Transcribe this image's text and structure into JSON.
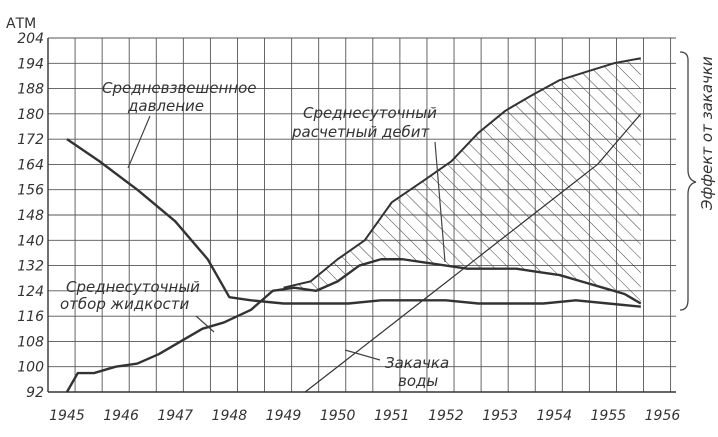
{
  "chart_data": {
    "type": "line",
    "ylabel": "АТМ",
    "x_ticks": [
      "1945",
      "1946",
      "1947",
      "1948",
      "1949",
      "1950",
      "1951",
      "1952",
      "1953",
      "1954",
      "1955",
      "1956"
    ],
    "y_ticks": [
      92,
      100,
      108,
      116,
      124,
      132,
      140,
      148,
      156,
      164,
      172,
      180,
      188,
      194,
      204
    ],
    "ylim": [
      92,
      204
    ],
    "grid": true,
    "series": [
      {
        "name": "Средневзвешенное давление",
        "x": [
          1945.0,
          1945.6,
          1946.3,
          1947.0,
          1947.6,
          1948.0,
          1948.4,
          1949.0,
          1949.6,
          1950.2,
          1950.8,
          1951.4,
          1952.0,
          1952.6,
          1953.2,
          1953.8,
          1954.4,
          1955.0,
          1955.6
        ],
        "y": [
          172,
          165,
          156,
          146,
          134,
          122,
          121,
          120,
          120,
          120,
          121,
          121,
          121,
          120,
          120,
          120,
          121,
          120,
          119
        ]
      },
      {
        "name": "Среднесуточный отбор жидкости",
        "x": [
          1945.0,
          1945.2,
          1945.5,
          1945.9,
          1946.3,
          1946.7,
          1947.1,
          1947.5,
          1947.9,
          1948.4,
          1948.8,
          1949.2,
          1949.6,
          1950.0,
          1950.4,
          1950.8,
          1951.2,
          1951.6,
          1952.0,
          1952.4,
          1952.9,
          1953.3,
          1953.7,
          1954.1,
          1954.5,
          1954.9,
          1955.3,
          1955.6
        ],
        "y": [
          92,
          98,
          98,
          100,
          101,
          104,
          108,
          112,
          114,
          118,
          124,
          125,
          124,
          127,
          132,
          134,
          134,
          133,
          132,
          131,
          131,
          131,
          130,
          129,
          127,
          125,
          123,
          120
        ]
      },
      {
        "name": "Среднесуточный расчетный дебит",
        "x": [
          1949.0,
          1949.5,
          1950.0,
          1950.5,
          1951.0,
          1951.6,
          1952.1,
          1952.6,
          1953.1,
          1953.6,
          1954.1,
          1954.6,
          1955.1,
          1955.6
        ],
        "y": [
          125,
          127,
          134,
          140,
          152,
          159,
          165,
          174,
          181,
          186,
          190,
          192,
          194,
          196
        ]
      },
      {
        "name": "Закачка воды",
        "x": [
          1949.4,
          1950.0,
          1950.6,
          1951.2,
          1951.8,
          1952.4,
          1953.0,
          1953.6,
          1954.2,
          1954.8,
          1955.2,
          1955.6
        ],
        "y": [
          92,
          100,
          108,
          116,
          124,
          132,
          140,
          148,
          156,
          164,
          172,
          180
        ]
      }
    ],
    "annotations": [
      "Средневзвешенное давление",
      "Среднесуточный расчетный дебит",
      "Среднесуточный отбор жидкости",
      "Закачка воды",
      "Эффект от закачки"
    ]
  }
}
